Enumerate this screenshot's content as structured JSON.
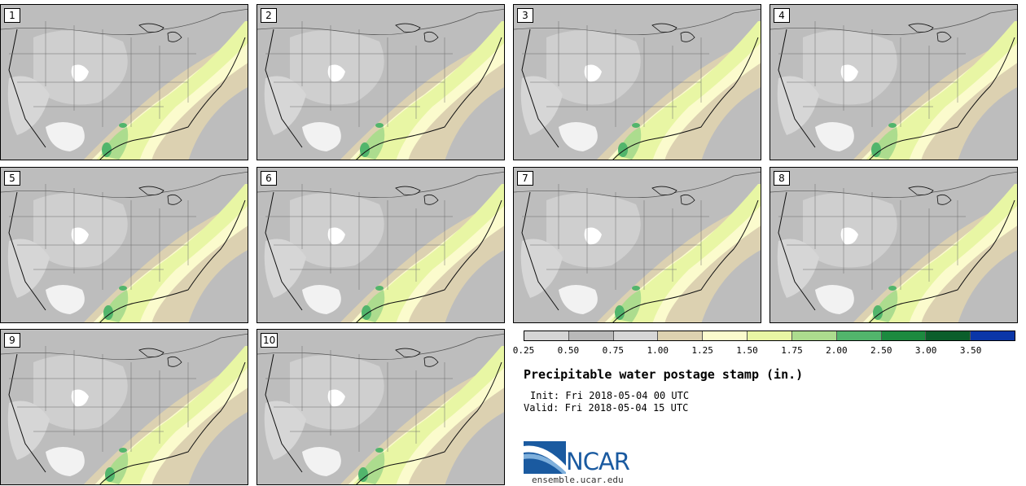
{
  "panels": [
    "1",
    "2",
    "3",
    "4",
    "5",
    "6",
    "7",
    "8",
    "9",
    "10"
  ],
  "legend": {
    "colors": [
      "#d5d5d5",
      "#b9b9b9",
      "#d6d6d6",
      "#ddd2b0",
      "#fbfbcd",
      "#e8f6a4",
      "#acdc8e",
      "#52b56c",
      "#1c8a3f",
      "#0b5e2b",
      "#0b36a8"
    ],
    "ticks": [
      "0.25",
      "0.50",
      "0.75",
      "1.00",
      "1.25",
      "1.50",
      "1.75",
      "2.00",
      "2.50",
      "3.00",
      "3.50"
    ]
  },
  "title": "Precipitable water postage stamp (in.)",
  "init": "Init: Fri 2018-05-04 00 UTC",
  "valid": "Valid: Fri 2018-05-04 15 UTC",
  "logo": {
    "name": "NCAR",
    "url": "ensemble.ucar.edu"
  }
}
